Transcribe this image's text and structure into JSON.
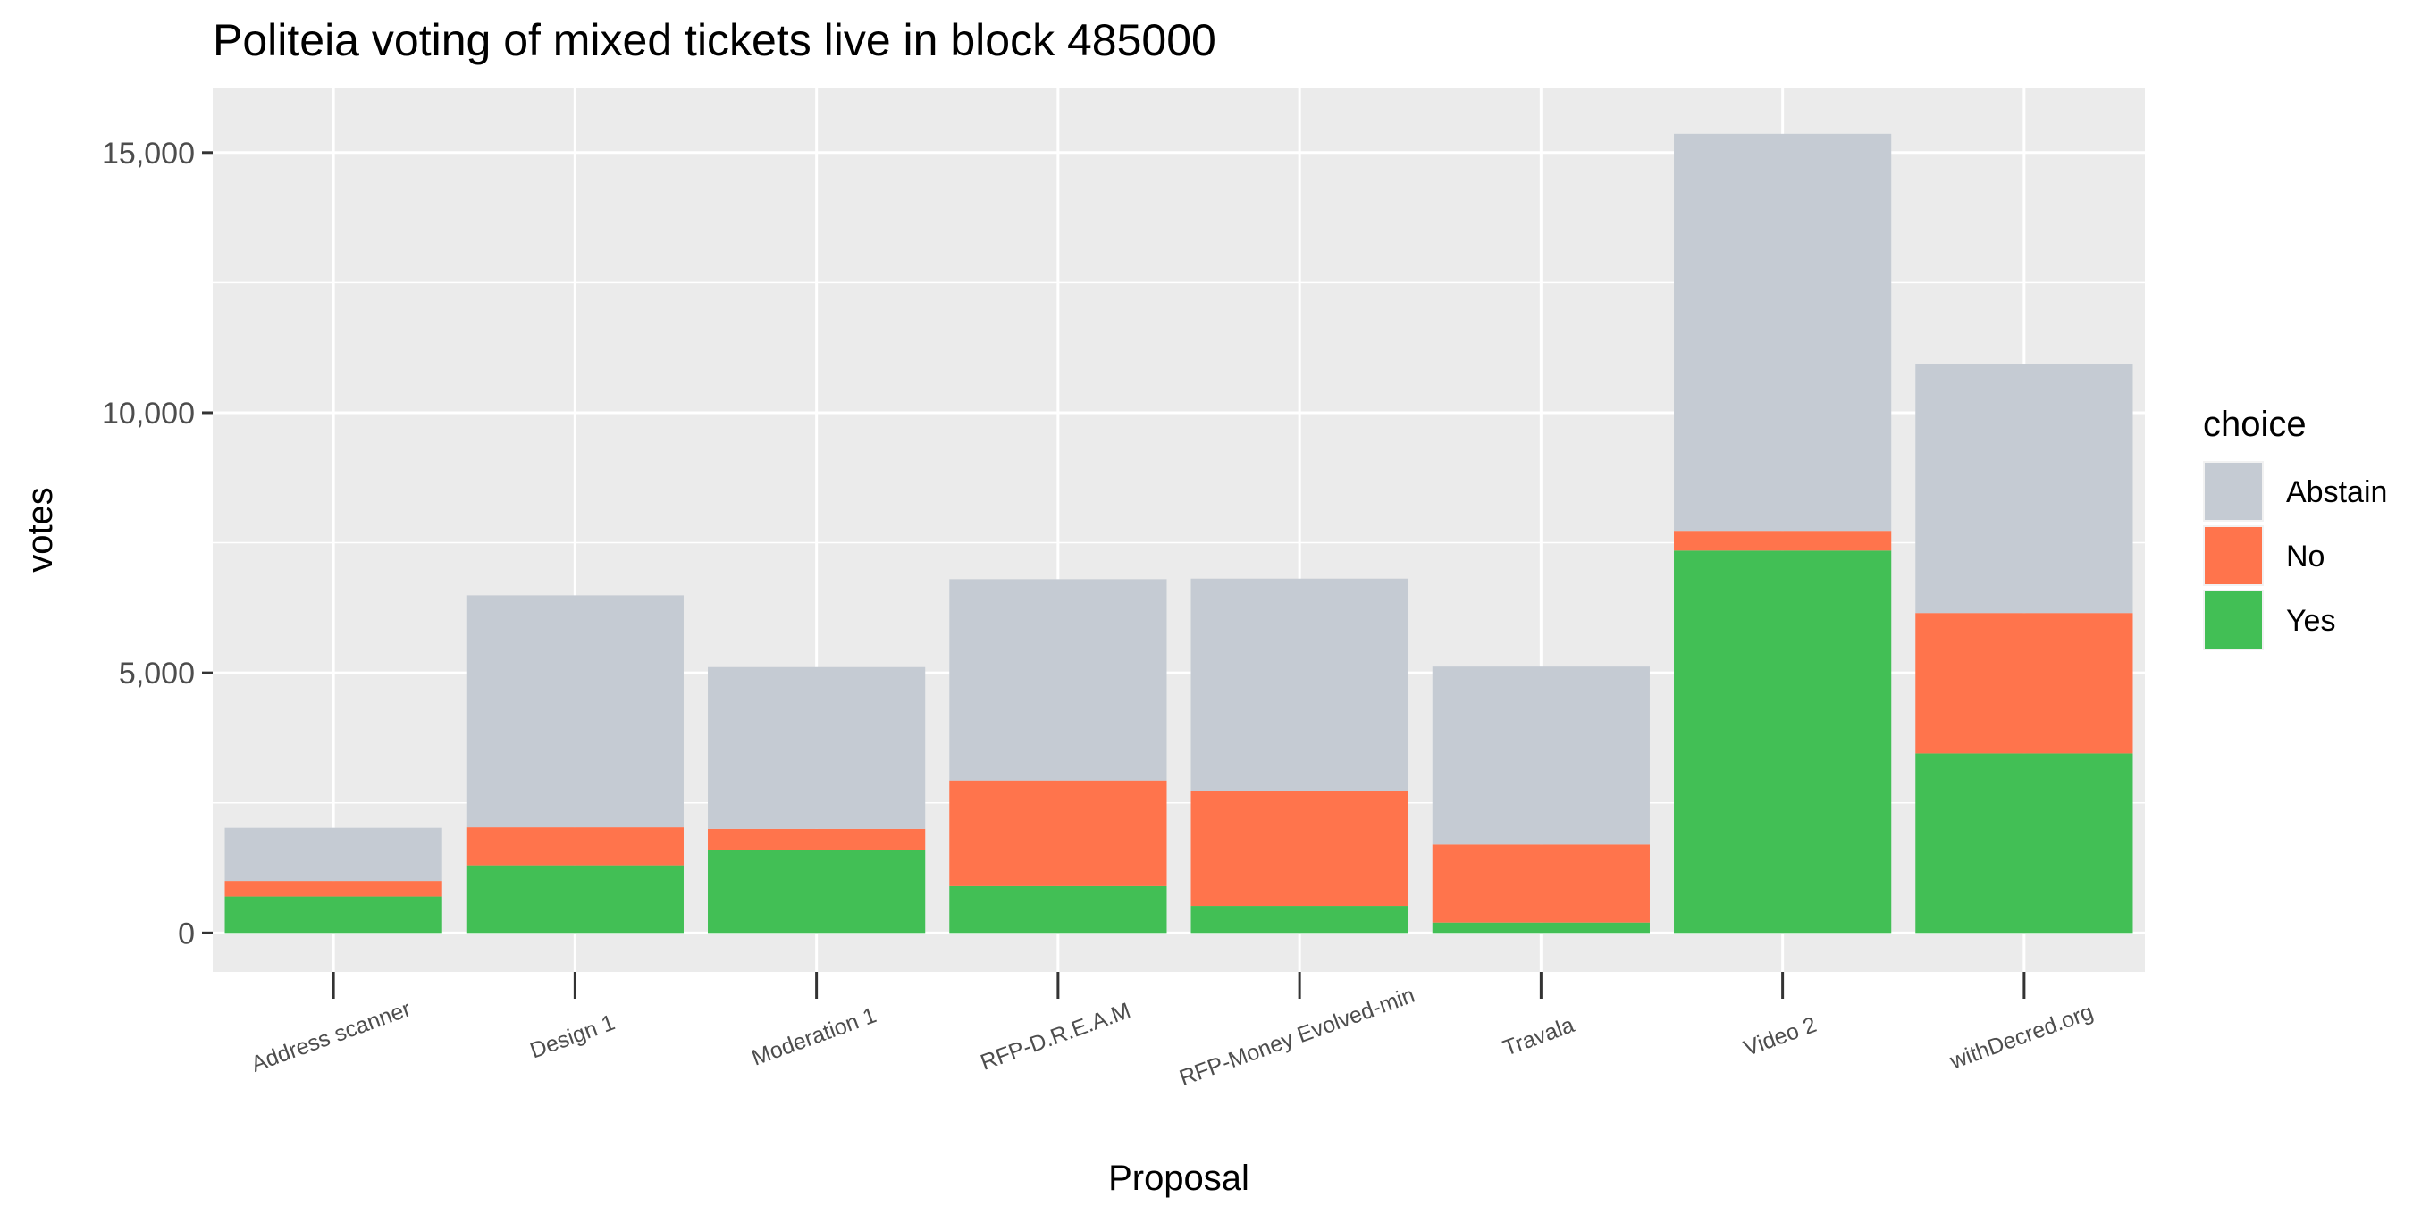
{
  "chart_data": {
    "type": "bar",
    "stacked": true,
    "title": "Politeia voting of mixed tickets live in block 485000",
    "xlabel": "Proposal",
    "ylabel": "votes",
    "categories": [
      "Address scanner",
      "Design 1",
      "Moderation 1",
      "RFP-D.R.E.A.M",
      "RFP-Money Evolved-min",
      "Travala",
      "Video 2",
      "withDecred.org"
    ],
    "series": [
      {
        "name": "Yes",
        "color": "#42bf55",
        "values": [
          700,
          1300,
          1600,
          900,
          520,
          200,
          7350,
          3450
        ]
      },
      {
        "name": "No",
        "color": "#ff744c",
        "values": [
          300,
          730,
          400,
          2030,
          2200,
          1500,
          380,
          2700
        ]
      },
      {
        "name": "Abstain",
        "color": "#c5cbd3",
        "values": [
          1020,
          4460,
          3110,
          3870,
          4090,
          3420,
          7630,
          4790
        ]
      }
    ],
    "ylim": [
      -750,
      16250
    ],
    "yticks": [
      0,
      5000,
      10000,
      15000
    ],
    "ytick_labels": [
      "0",
      "5,000",
      "10,000",
      "15,000"
    ],
    "legend": {
      "title": "choice",
      "order": [
        "Abstain",
        "No",
        "Yes"
      ],
      "position": "right"
    },
    "grid": true,
    "panel_background": "#ebebeb",
    "grid_color": "#ffffff"
  }
}
